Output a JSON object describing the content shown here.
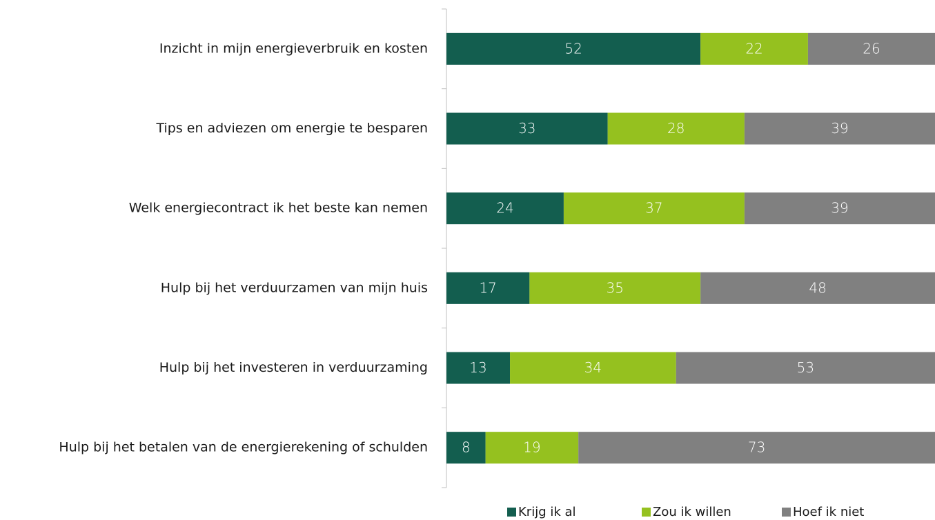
{
  "chart_data": {
    "type": "stacked_barh",
    "categories": [
      "Inzicht in mijn energieverbruik en kosten",
      "Tips en adviezen om energie te besparen",
      "Welk energiecontract ik het beste kan nemen",
      "Hulp bij het verduurzamen van mijn huis",
      "Hulp bij het investeren in verduurzaming",
      "Hulp bij het betalen van de energierekening of schulden"
    ],
    "series": [
      {
        "name": "Krijg ik al",
        "color": "#135e4f",
        "values": [
          52,
          33,
          24,
          17,
          13,
          8
        ]
      },
      {
        "name": "Zou ik willen",
        "color": "#95c11f",
        "values": [
          22,
          28,
          37,
          35,
          34,
          19
        ]
      },
      {
        "name": "Hoef ik niet",
        "color": "#808080",
        "values": [
          26,
          39,
          39,
          48,
          53,
          73
        ]
      }
    ],
    "xlim": [
      0,
      100
    ],
    "legend": "bottom"
  }
}
